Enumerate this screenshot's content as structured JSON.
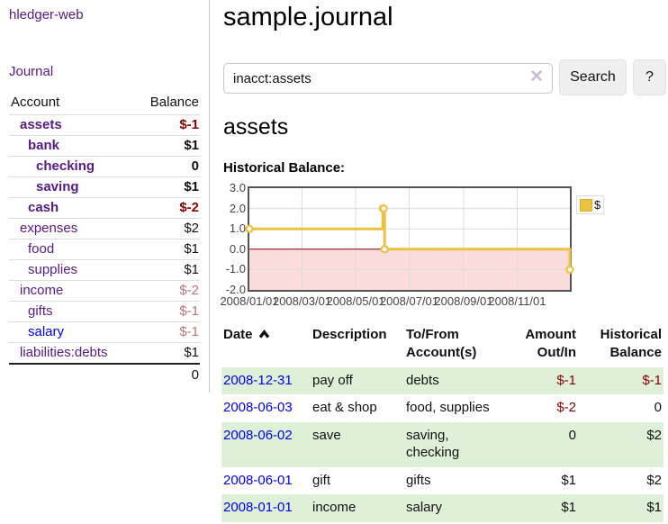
{
  "app": {
    "title": "hledger-web"
  },
  "sidebar": {
    "journal_link": "Journal",
    "accounts_header": {
      "account": "Account",
      "balance": "Balance"
    },
    "accounts": [
      {
        "name": "assets",
        "balance": "$-1"
      },
      {
        "name": "bank",
        "balance": "$1"
      },
      {
        "name": "checking",
        "balance": "0"
      },
      {
        "name": "saving",
        "balance": "$1"
      },
      {
        "name": "cash",
        "balance": "$-2"
      },
      {
        "name": "expenses",
        "balance": "$2"
      },
      {
        "name": "food",
        "balance": "$1"
      },
      {
        "name": "supplies",
        "balance": "$1"
      },
      {
        "name": "income",
        "balance": "$-2"
      },
      {
        "name": "gifts",
        "balance": "$-1"
      },
      {
        "name": "salary",
        "balance": "$-1"
      },
      {
        "name": "liabilities:debts",
        "balance": "$1"
      }
    ],
    "total": "0"
  },
  "header": {
    "title": "sample.journal"
  },
  "search": {
    "value": "inacct:assets",
    "clear_icon": "✕",
    "button_label": "Search",
    "help_label": "?"
  },
  "register": {
    "heading": "assets",
    "chart_label": "Historical Balance:"
  },
  "chart_data": {
    "type": "line",
    "step": true,
    "title": "Historical Balance",
    "series": [
      {
        "name": "$",
        "color": "#edc240",
        "x": [
          "2008-01-01",
          "2008-06-01",
          "2008-06-02",
          "2008-06-03",
          "2008-12-31"
        ],
        "y": [
          1,
          2,
          2,
          0,
          -1
        ]
      }
    ],
    "ylim": [
      -2,
      3
    ],
    "yticks": [
      "3.0",
      "2.0",
      "1.0",
      "0.0",
      "-1.0",
      "-2.0"
    ],
    "xticks": [
      "2008/01/01",
      "2008/03/01",
      "2008/05/01",
      "2008/07/01",
      "2008/09/01",
      "2008/11/01"
    ],
    "legend": {
      "label": "$",
      "position": "top-right"
    },
    "grid": true,
    "gridline_color": "#dcdcdc",
    "zero_line_color": "#800000",
    "negative_region_color": "#fbdcdc"
  },
  "table": {
    "headers": {
      "date": "Date",
      "description": "Description",
      "tofrom": "To/From Account(s)",
      "amount": "Amount Out/In",
      "historical": "Historical Balance"
    },
    "rows": [
      {
        "date": "2008-12-31",
        "description": "pay off",
        "tofrom": "debts",
        "amount": "$-1",
        "historical": "$-1"
      },
      {
        "date": "2008-06-03",
        "description": "eat & shop",
        "tofrom": "food, supplies",
        "amount": "$-2",
        "historical": "0"
      },
      {
        "date": "2008-06-02",
        "description": "save",
        "tofrom": "saving,\nchecking",
        "amount": "0",
        "historical": "$2"
      },
      {
        "date": "2008-06-01",
        "description": "gift",
        "tofrom": "gifts",
        "amount": "$1",
        "historical": "$2"
      },
      {
        "date": "2008-01-01",
        "description": "income",
        "tofrom": "salary",
        "amount": "$1",
        "historical": "$1"
      }
    ]
  }
}
